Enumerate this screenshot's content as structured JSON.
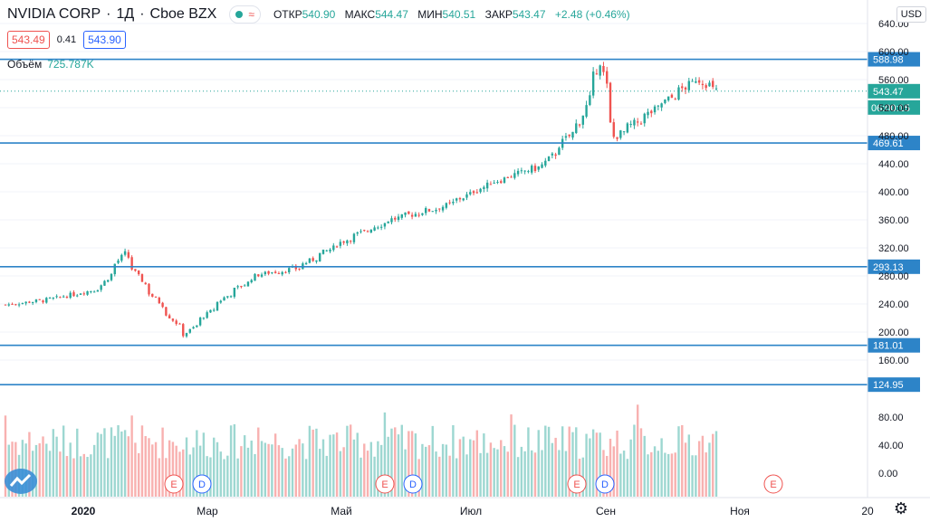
{
  "header": {
    "symbol": "NVIDIA CORP",
    "interval": "1Д",
    "exchange": "Cboe BZX",
    "ohlc": [
      {
        "label": "ОТКР",
        "value": "540.90"
      },
      {
        "label": "МАКС",
        "value": "544.47"
      },
      {
        "label": "МИН",
        "value": "540.51"
      },
      {
        "label": "ЗАКР",
        "value": "543.47"
      }
    ],
    "change": "+2.48 (+0.46%)"
  },
  "quote": {
    "bid": "543.49",
    "spread": "0.41",
    "ask": "543.90"
  },
  "volume": {
    "label": "Объём",
    "value": "725.787K"
  },
  "currency": "USD",
  "colors": {
    "up": "#26a69a",
    "down": "#ef5350",
    "hline": "#2d84c8",
    "price_tag": "#26a69a"
  },
  "price_tags": {
    "last": "543.47",
    "countdown": "06:00:15"
  },
  "chart_data": {
    "type": "candlestick",
    "price_ticks": [
      160,
      200,
      240,
      280,
      320,
      360,
      400,
      440,
      480,
      520,
      560,
      600,
      640
    ],
    "volume_ticks": [
      "0.00",
      "40.00",
      "80.00"
    ],
    "horizontal_levels": [
      "588.98",
      "469.61",
      "293.13",
      "181.01",
      "124.95"
    ],
    "x_labels": [
      "2020",
      "Мар",
      "Май",
      "Июл",
      "Сен",
      "Ноя",
      "20"
    ],
    "events": [
      "E",
      "D",
      "E",
      "D",
      "E",
      "D",
      "E"
    ],
    "trend_anchors": [
      {
        "date": "2020-01-02",
        "close": 239
      },
      {
        "date": "2020-01-20",
        "close": 246
      },
      {
        "date": "2020-02-10",
        "close": 262
      },
      {
        "date": "2020-02-20",
        "close": 312
      },
      {
        "date": "2020-02-28",
        "close": 268
      },
      {
        "date": "2020-03-16",
        "close": 196
      },
      {
        "date": "2020-04-01",
        "close": 249
      },
      {
        "date": "2020-04-15",
        "close": 282
      },
      {
        "date": "2020-05-01",
        "close": 291
      },
      {
        "date": "2020-05-20",
        "close": 330
      },
      {
        "date": "2020-06-08",
        "close": 360
      },
      {
        "date": "2020-07-01",
        "close": 380
      },
      {
        "date": "2020-07-20",
        "close": 414
      },
      {
        "date": "2020-08-10",
        "close": 438
      },
      {
        "date": "2020-08-25",
        "close": 500
      },
      {
        "date": "2020-09-02",
        "close": 586
      },
      {
        "date": "2020-09-08",
        "close": 478
      },
      {
        "date": "2020-09-22",
        "close": 511
      },
      {
        "date": "2020-10-12",
        "close": 562
      },
      {
        "date": "2020-10-20",
        "close": 543.47
      }
    ]
  }
}
